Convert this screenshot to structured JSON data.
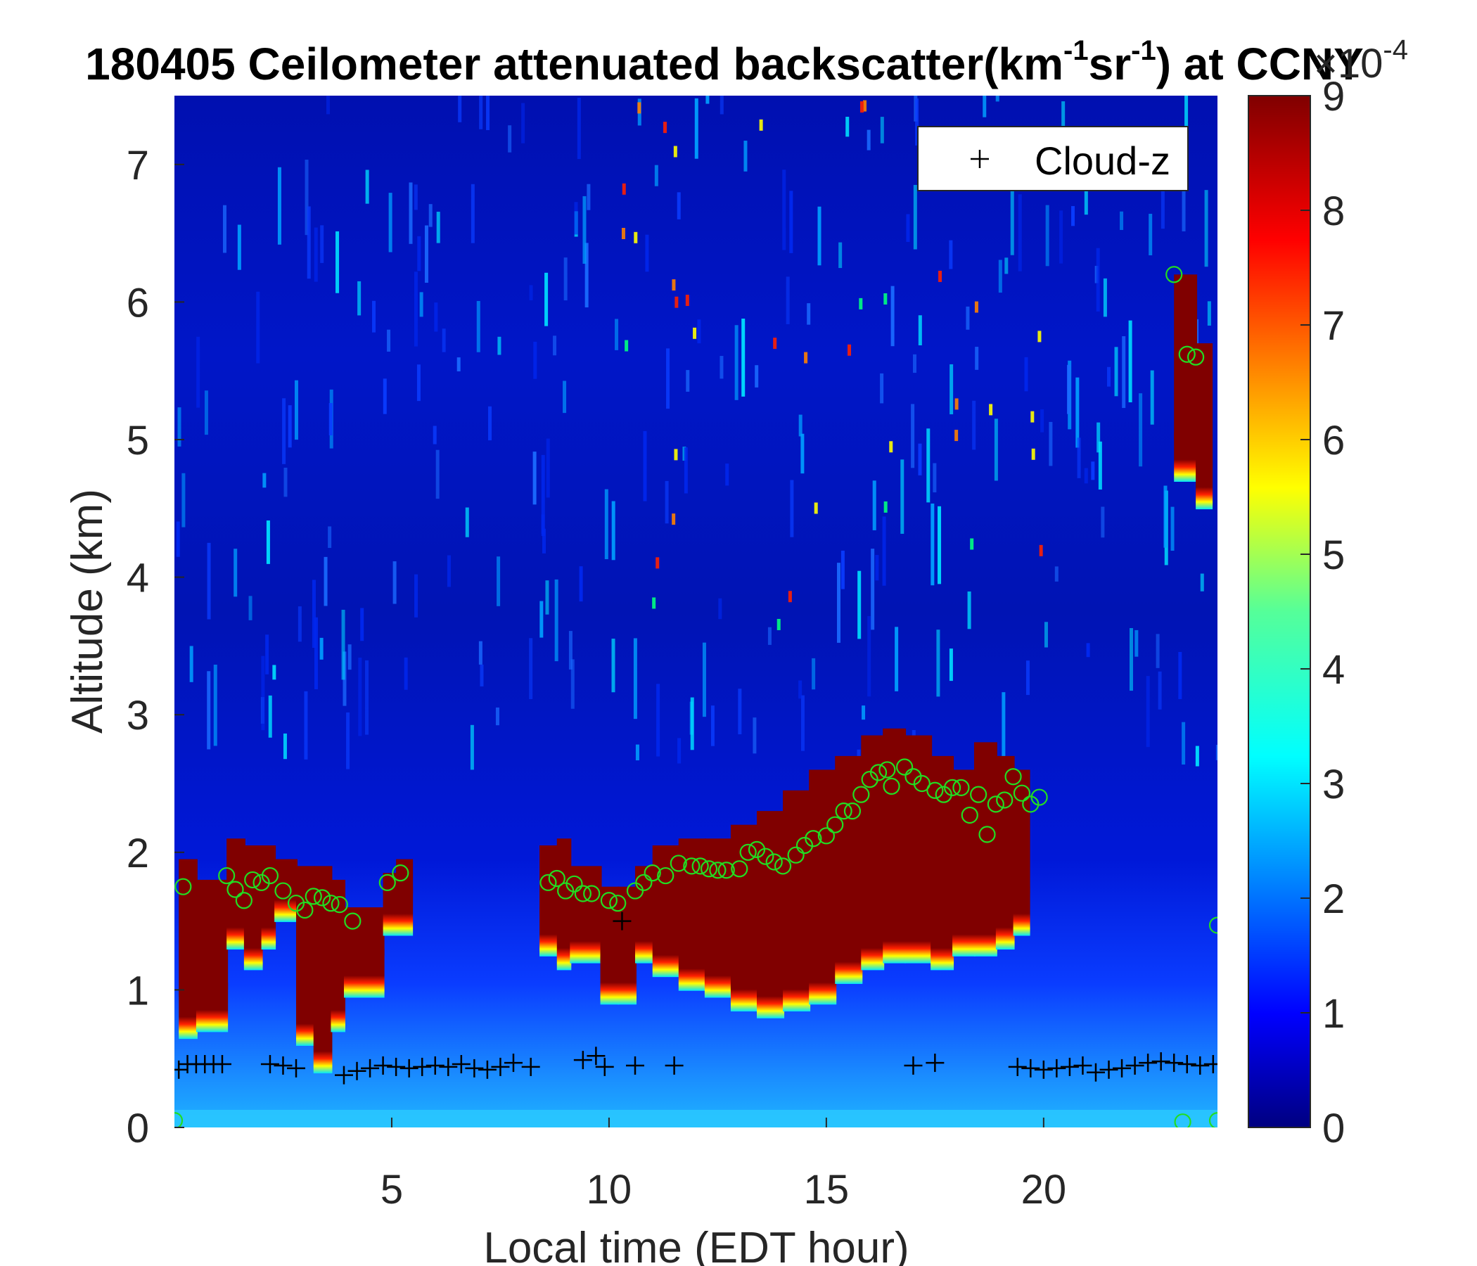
{
  "chart_data": {
    "type": "heatmap",
    "title": {
      "prefix": "180405 Ceilometer attenuated backscatter(km",
      "sup1": "-1",
      "middle": "sr",
      "sup2": "-1",
      "suffix": ") at CCNY"
    },
    "xlabel": "Local time (EDT hour)",
    "ylabel": "Altitude (km)",
    "xlim": [
      0,
      24
    ],
    "ylim": [
      0,
      7.5
    ],
    "xticks": [
      5,
      10,
      15,
      20
    ],
    "yticks": [
      0,
      1,
      2,
      3,
      4,
      5,
      6,
      7
    ],
    "colorbar": {
      "min": 0,
      "max": 9,
      "ticks": [
        0,
        1,
        2,
        3,
        4,
        5,
        6,
        7,
        8,
        9
      ],
      "exponent_base": "×10",
      "exponent_power": "-4",
      "colormap": "jet"
    },
    "legend": {
      "entries": [
        "Cloud-z"
      ],
      "position": "top-right"
    },
    "cloud_layer": [
      {
        "t": 0.1,
        "base": 0.95,
        "top": 1.95
      },
      {
        "t": 0.5,
        "base": 1.0,
        "top": 1.8
      },
      {
        "t": 1.2,
        "base": 1.6,
        "top": 2.1
      },
      {
        "t": 1.6,
        "base": 1.45,
        "top": 2.05
      },
      {
        "t": 2.0,
        "base": 1.6,
        "top": 2.05
      },
      {
        "t": 2.3,
        "base": 1.8,
        "top": 1.95
      },
      {
        "t": 2.8,
        "base": 0.9,
        "top": 1.9
      },
      {
        "t": 3.2,
        "base": 0.7,
        "top": 1.9
      },
      {
        "t": 3.6,
        "base": 1.0,
        "top": 1.8
      },
      {
        "t": 3.9,
        "base": 1.25,
        "top": 1.6
      },
      {
        "t": 4.8,
        "base": 1.7,
        "top": 1.85
      },
      {
        "t": 5.1,
        "base": 1.7,
        "top": 1.95
      },
      {
        "t": 8.4,
        "base": 1.55,
        "top": 2.05
      },
      {
        "t": 8.8,
        "base": 1.45,
        "top": 2.1
      },
      {
        "t": 9.1,
        "base": 1.5,
        "top": 1.9
      },
      {
        "t": 9.8,
        "base": 1.2,
        "top": 1.75
      },
      {
        "t": 10.2,
        "base": 1.2,
        "top": 1.75
      },
      {
        "t": 10.6,
        "base": 1.5,
        "top": 1.9
      },
      {
        "t": 11.0,
        "base": 1.4,
        "top": 2.05
      },
      {
        "t": 11.6,
        "base": 1.3,
        "top": 2.1
      },
      {
        "t": 12.2,
        "base": 1.25,
        "top": 2.1
      },
      {
        "t": 12.8,
        "base": 1.15,
        "top": 2.2
      },
      {
        "t": 13.4,
        "base": 1.1,
        "top": 2.3
      },
      {
        "t": 14.0,
        "base": 1.15,
        "top": 2.45
      },
      {
        "t": 14.6,
        "base": 1.2,
        "top": 2.6
      },
      {
        "t": 15.2,
        "base": 1.35,
        "top": 2.7
      },
      {
        "t": 15.8,
        "base": 1.45,
        "top": 2.85
      },
      {
        "t": 16.3,
        "base": 1.5,
        "top": 2.9
      },
      {
        "t": 16.8,
        "base": 1.5,
        "top": 2.85
      },
      {
        "t": 17.4,
        "base": 1.45,
        "top": 2.7
      },
      {
        "t": 17.9,
        "base": 1.55,
        "top": 2.6
      },
      {
        "t": 18.4,
        "base": 1.55,
        "top": 2.8
      },
      {
        "t": 18.9,
        "base": 1.6,
        "top": 2.7
      },
      {
        "t": 19.3,
        "base": 1.7,
        "top": 2.6
      },
      {
        "t": 23.0,
        "base": 5.0,
        "top": 6.2
      },
      {
        "t": 23.5,
        "base": 4.8,
        "top": 5.7
      }
    ],
    "series": [
      {
        "name": "Cloud-z",
        "marker": "+",
        "color": "#000000",
        "points": [
          {
            "x": 0.1,
            "y": 0.42
          },
          {
            "x": 0.3,
            "y": 0.46
          },
          {
            "x": 0.5,
            "y": 0.46
          },
          {
            "x": 0.7,
            "y": 0.46
          },
          {
            "x": 0.9,
            "y": 0.46
          },
          {
            "x": 1.1,
            "y": 0.46
          },
          {
            "x": 2.2,
            "y": 0.46
          },
          {
            "x": 2.5,
            "y": 0.45
          },
          {
            "x": 2.8,
            "y": 0.43
          },
          {
            "x": 3.9,
            "y": 0.38
          },
          {
            "x": 4.2,
            "y": 0.41
          },
          {
            "x": 4.5,
            "y": 0.43
          },
          {
            "x": 4.8,
            "y": 0.45
          },
          {
            "x": 5.1,
            "y": 0.44
          },
          {
            "x": 5.4,
            "y": 0.43
          },
          {
            "x": 5.7,
            "y": 0.44
          },
          {
            "x": 6.0,
            "y": 0.45
          },
          {
            "x": 6.3,
            "y": 0.44
          },
          {
            "x": 6.6,
            "y": 0.46
          },
          {
            "x": 6.9,
            "y": 0.43
          },
          {
            "x": 7.2,
            "y": 0.42
          },
          {
            "x": 7.5,
            "y": 0.44
          },
          {
            "x": 7.8,
            "y": 0.47
          },
          {
            "x": 8.2,
            "y": 0.44
          },
          {
            "x": 9.4,
            "y": 0.49
          },
          {
            "x": 9.7,
            "y": 0.52
          },
          {
            "x": 9.9,
            "y": 0.44
          },
          {
            "x": 10.3,
            "y": 1.5
          },
          {
            "x": 10.6,
            "y": 0.45
          },
          {
            "x": 11.5,
            "y": 0.45
          },
          {
            "x": 17.0,
            "y": 0.45
          },
          {
            "x": 17.5,
            "y": 0.47
          },
          {
            "x": 19.4,
            "y": 0.44
          },
          {
            "x": 19.7,
            "y": 0.43
          },
          {
            "x": 20.0,
            "y": 0.42
          },
          {
            "x": 20.3,
            "y": 0.43
          },
          {
            "x": 20.6,
            "y": 0.44
          },
          {
            "x": 20.9,
            "y": 0.45
          },
          {
            "x": 21.2,
            "y": 0.4
          },
          {
            "x": 21.5,
            "y": 0.42
          },
          {
            "x": 21.8,
            "y": 0.43
          },
          {
            "x": 22.1,
            "y": 0.45
          },
          {
            "x": 22.4,
            "y": 0.47
          },
          {
            "x": 22.7,
            "y": 0.48
          },
          {
            "x": 23.0,
            "y": 0.47
          },
          {
            "x": 23.3,
            "y": 0.46
          },
          {
            "x": 23.6,
            "y": 0.45
          },
          {
            "x": 23.9,
            "y": 0.46
          }
        ]
      },
      {
        "marker": "o",
        "color": "#22dd22",
        "points": [
          {
            "x": 0.2,
            "y": 1.75
          },
          {
            "x": 1.2,
            "y": 1.83
          },
          {
            "x": 1.4,
            "y": 1.73
          },
          {
            "x": 1.6,
            "y": 1.65
          },
          {
            "x": 1.8,
            "y": 1.8
          },
          {
            "x": 2.0,
            "y": 1.78
          },
          {
            "x": 2.2,
            "y": 1.83
          },
          {
            "x": 2.5,
            "y": 1.72
          },
          {
            "x": 2.8,
            "y": 1.63
          },
          {
            "x": 3.0,
            "y": 1.58
          },
          {
            "x": 3.2,
            "y": 1.68
          },
          {
            "x": 3.4,
            "y": 1.67
          },
          {
            "x": 3.6,
            "y": 1.63
          },
          {
            "x": 3.8,
            "y": 1.62
          },
          {
            "x": 4.1,
            "y": 1.5
          },
          {
            "x": 4.9,
            "y": 1.78
          },
          {
            "x": 5.2,
            "y": 1.85
          },
          {
            "x": 8.6,
            "y": 1.78
          },
          {
            "x": 8.8,
            "y": 1.81
          },
          {
            "x": 9.0,
            "y": 1.72
          },
          {
            "x": 9.2,
            "y": 1.77
          },
          {
            "x": 9.4,
            "y": 1.7
          },
          {
            "x": 9.6,
            "y": 1.7
          },
          {
            "x": 10.0,
            "y": 1.65
          },
          {
            "x": 10.2,
            "y": 1.63
          },
          {
            "x": 10.6,
            "y": 1.72
          },
          {
            "x": 10.8,
            "y": 1.78
          },
          {
            "x": 11.0,
            "y": 1.85
          },
          {
            "x": 11.3,
            "y": 1.83
          },
          {
            "x": 11.6,
            "y": 1.92
          },
          {
            "x": 11.9,
            "y": 1.9
          },
          {
            "x": 12.1,
            "y": 1.9
          },
          {
            "x": 12.3,
            "y": 1.88
          },
          {
            "x": 12.5,
            "y": 1.87
          },
          {
            "x": 12.7,
            "y": 1.87
          },
          {
            "x": 13.0,
            "y": 1.88
          },
          {
            "x": 13.2,
            "y": 2.0
          },
          {
            "x": 13.4,
            "y": 2.02
          },
          {
            "x": 13.6,
            "y": 1.97
          },
          {
            "x": 13.8,
            "y": 1.93
          },
          {
            "x": 14.0,
            "y": 1.9
          },
          {
            "x": 14.3,
            "y": 1.98
          },
          {
            "x": 14.5,
            "y": 2.05
          },
          {
            "x": 14.7,
            "y": 2.1
          },
          {
            "x": 15.0,
            "y": 2.12
          },
          {
            "x": 15.2,
            "y": 2.2
          },
          {
            "x": 15.4,
            "y": 2.3
          },
          {
            "x": 15.6,
            "y": 2.3
          },
          {
            "x": 15.8,
            "y": 2.42
          },
          {
            "x": 16.0,
            "y": 2.53
          },
          {
            "x": 16.2,
            "y": 2.58
          },
          {
            "x": 16.4,
            "y": 2.6
          },
          {
            "x": 16.5,
            "y": 2.48
          },
          {
            "x": 16.8,
            "y": 2.62
          },
          {
            "x": 17.0,
            "y": 2.55
          },
          {
            "x": 17.2,
            "y": 2.5
          },
          {
            "x": 17.5,
            "y": 2.45
          },
          {
            "x": 17.7,
            "y": 2.42
          },
          {
            "x": 17.9,
            "y": 2.47
          },
          {
            "x": 18.1,
            "y": 2.47
          },
          {
            "x": 18.3,
            "y": 2.27
          },
          {
            "x": 18.5,
            "y": 2.42
          },
          {
            "x": 18.7,
            "y": 2.13
          },
          {
            "x": 18.9,
            "y": 2.35
          },
          {
            "x": 19.1,
            "y": 2.38
          },
          {
            "x": 19.3,
            "y": 2.55
          },
          {
            "x": 19.5,
            "y": 2.43
          },
          {
            "x": 19.7,
            "y": 2.35
          },
          {
            "x": 19.9,
            "y": 2.4
          },
          {
            "x": 23.0,
            "y": 6.2
          },
          {
            "x": 23.3,
            "y": 5.62
          },
          {
            "x": 23.5,
            "y": 5.6
          },
          {
            "x": 24.0,
            "y": 1.47
          },
          {
            "x": 0.0,
            "y": 0.05
          },
          {
            "x": 24.0,
            "y": 0.05
          },
          {
            "x": 23.2,
            "y": 0.04
          }
        ]
      }
    ]
  }
}
